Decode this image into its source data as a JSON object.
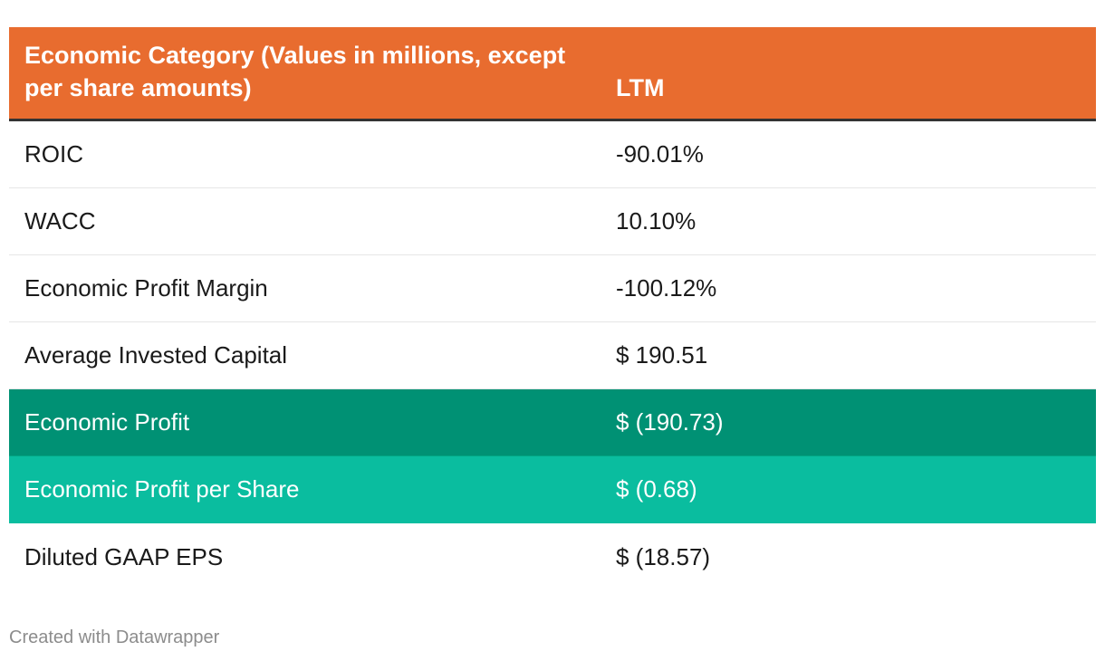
{
  "chart_data": {
    "type": "table",
    "columns": [
      "Economic Category (Values in millions, except per share amounts)",
      "LTM"
    ],
    "rows": [
      {
        "label": "ROIC",
        "value": "-90.01%",
        "highlight": "none"
      },
      {
        "label": "WACC",
        "value": "10.10%",
        "highlight": "none"
      },
      {
        "label": "Economic Profit Margin",
        "value": "-100.12%",
        "highlight": "none"
      },
      {
        "label": "Average Invested Capital",
        "value": "$ 190.51",
        "highlight": "none"
      },
      {
        "label": "Economic Profit",
        "value": "$ (190.73)",
        "highlight": "dark"
      },
      {
        "label": "Economic Profit per Share",
        "value": "$ (0.68)",
        "highlight": "light"
      },
      {
        "label": "Diluted GAAP EPS",
        "value": "$ (18.57)",
        "highlight": "none"
      }
    ]
  },
  "footer": {
    "credit": "Created with Datawrapper"
  },
  "colors": {
    "header_bg": "#e86c2f",
    "highlight_dark": "#009174",
    "highlight_light": "#0abd9f",
    "header_rule": "#333333"
  }
}
